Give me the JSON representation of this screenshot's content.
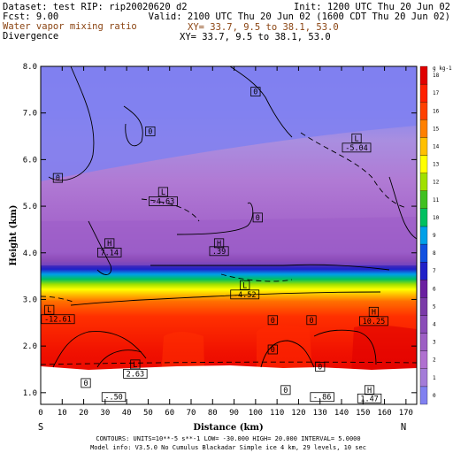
{
  "header": {
    "dataset": "Dataset: test  RIP: rip20020620 d2",
    "init": "Init: 1200 UTC Thu 20 Jun 02",
    "fcst": "Fcst:    9.00",
    "valid": "Valid: 2100 UTC Thu 20 Jun 02 (1600 CDT Thu 20 Jun 02)",
    "var1": "Water vapor mixing ratio",
    "xy1": "XY=  33.7,  9.5 to  38.1, 53.0",
    "var2": "Divergence",
    "xy2": "XY=  33.7,  9.5 to  38.1, 53.0"
  },
  "chart_data": {
    "type": "heatmap",
    "xlabel": "Distance (km)",
    "ylabel": "Height (km)",
    "x_ticks": [
      "0",
      "10",
      "20",
      "30",
      "40",
      "50",
      "60",
      "70",
      "80",
      "90",
      "100",
      "110",
      "120",
      "130",
      "140",
      "150",
      "160",
      "170"
    ],
    "y_ticks": [
      "1.0",
      "2.0",
      "3.0",
      "4.0",
      "5.0",
      "6.0",
      "7.0",
      "8.0"
    ],
    "xlim": [
      0,
      175
    ],
    "ylim": [
      0.75,
      8.0
    ],
    "left_end": "S",
    "right_end": "N",
    "colorbar": {
      "unit": "g kg-1",
      "labels": [
        "0",
        "1",
        "2",
        "3",
        "4",
        "5",
        "6",
        "7",
        "8",
        "9",
        "10",
        "11",
        "12",
        "13",
        "14",
        "15",
        "16",
        "17",
        "18"
      ],
      "colors": [
        "#8080f0",
        "#a47cd8",
        "#b070d0",
        "#9d5fc4",
        "#8a4cb8",
        "#7a3aa8",
        "#6a1fa0",
        "#2020c8",
        "#1050e0",
        "#00a0e8",
        "#00c060",
        "#40c020",
        "#a0e000",
        "#ffff00",
        "#ffc000",
        "#ff8000",
        "#ff4000",
        "#ff2000",
        "#e00000"
      ]
    },
    "annotations": [
      {
        "text": "0",
        "x": 100,
        "y": 7.4
      },
      {
        "text": "0",
        "x": 51,
        "y": 6.55
      },
      {
        "text": "0",
        "x": 8,
        "y": 5.55
      },
      {
        "text": "L",
        "x": 147,
        "y": 6.4
      },
      {
        "text": "-5.04",
        "x": 147,
        "y": 6.2
      },
      {
        "text": "L",
        "x": 57,
        "y": 5.25
      },
      {
        "text": "-4.63",
        "x": 57,
        "y": 5.05
      },
      {
        "text": "0",
        "x": 101,
        "y": 4.7
      },
      {
        "text": "H",
        "x": 32,
        "y": 4.15
      },
      {
        "text": "7.14",
        "x": 32,
        "y": 3.95
      },
      {
        "text": "H",
        "x": 83,
        "y": 4.15
      },
      {
        "text": ".39",
        "x": 83,
        "y": 3.98
      },
      {
        "text": "L",
        "x": 95,
        "y": 3.25
      },
      {
        "text": "-4.52",
        "x": 95,
        "y": 3.05
      },
      {
        "text": "L",
        "x": 4,
        "y": 2.72
      },
      {
        "text": "-12.61",
        "x": 8,
        "y": 2.52
      },
      {
        "text": "0",
        "x": 108,
        "y": 2.5
      },
      {
        "text": "0",
        "x": 126,
        "y": 2.5
      },
      {
        "text": "H",
        "x": 155,
        "y": 2.68
      },
      {
        "text": "10.25",
        "x": 155,
        "y": 2.48
      },
      {
        "text": "0",
        "x": 108,
        "y": 1.87
      },
      {
        "text": "L",
        "x": 44,
        "y": 1.55
      },
      {
        "text": "2.63",
        "x": 44,
        "y": 1.35
      },
      {
        "text": "0",
        "x": 130,
        "y": 1.5
      },
      {
        "text": "0",
        "x": 21,
        "y": 1.15
      },
      {
        "text": "0",
        "x": 114,
        "y": 1.0
      },
      {
        "text": "-.50",
        "x": 34,
        "y": 0.85
      },
      {
        "text": "-.86",
        "x": 131,
        "y": 0.85
      },
      {
        "text": "H",
        "x": 153,
        "y": 1.0
      },
      {
        "text": "1.47",
        "x": 153,
        "y": 0.82
      }
    ]
  },
  "footer": {
    "contours": "CONTOURS:  UNITS=10**-5 s**-1  LOW= -30.000      HIGH=  20.000      INTERVAL=  5.0000",
    "model": "Model info: V3.5.0 No Cumulus Blackadar  Simple ice    4 km,  29 levels,  10 sec"
  }
}
